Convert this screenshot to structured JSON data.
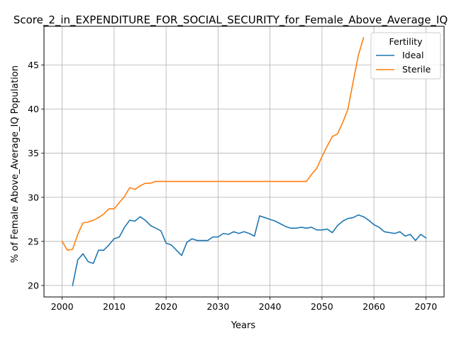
{
  "chart_data": {
    "type": "line",
    "title": "Score_2_in_EXPENDITURE_FOR_SOCIAL_SECURITY_for_Female_Above_Average_IQ",
    "xlabel": "Years",
    "ylabel": "% of Female Above_Average_IQ Population",
    "xlim": [
      1996.5,
      2073.5
    ],
    "ylim": [
      18.7,
      49.4
    ],
    "xticks": [
      2000,
      2010,
      2020,
      2030,
      2040,
      2050,
      2060,
      2070
    ],
    "xtick_labels": [
      "2000",
      "2010",
      "2020",
      "2030",
      "2040",
      "2050",
      "2060",
      "2070"
    ],
    "yticks": [
      20,
      25,
      30,
      35,
      40,
      45
    ],
    "ytick_labels": [
      "20",
      "25",
      "30",
      "35",
      "40",
      "45"
    ],
    "grid": true,
    "legend": {
      "title": "Fertility",
      "placement": "top-right"
    },
    "series": [
      {
        "name": "Ideal",
        "color": "#1f77b4",
        "x": [
          2002,
          2003,
          2004,
          2005,
          2006,
          2007,
          2008,
          2009,
          2010,
          2011,
          2012,
          2013,
          2014,
          2015,
          2016,
          2017,
          2018,
          2019,
          2020,
          2021,
          2022,
          2023,
          2024,
          2025,
          2026,
          2027,
          2028,
          2029,
          2030,
          2031,
          2032,
          2033,
          2034,
          2035,
          2036,
          2037,
          2038,
          2039,
          2040,
          2041,
          2042,
          2043,
          2044,
          2045,
          2046,
          2047,
          2048,
          2049,
          2050,
          2051,
          2052,
          2053,
          2054,
          2055,
          2056,
          2057,
          2058,
          2059,
          2060,
          2061,
          2062,
          2063,
          2064,
          2065,
          2066,
          2067,
          2068,
          2069,
          2070
        ],
        "y": [
          20.0,
          22.9,
          23.6,
          22.7,
          22.5,
          24.0,
          24.0,
          24.6,
          25.3,
          25.5,
          26.6,
          27.4,
          27.3,
          27.8,
          27.4,
          26.8,
          26.5,
          26.2,
          24.8,
          24.6,
          24.0,
          23.4,
          24.9,
          25.3,
          25.1,
          25.1,
          25.1,
          25.5,
          25.5,
          25.9,
          25.8,
          26.1,
          25.9,
          26.1,
          25.9,
          25.6,
          27.9,
          27.7,
          27.5,
          27.3,
          27.0,
          26.7,
          26.5,
          26.5,
          26.6,
          26.5,
          26.6,
          26.3,
          26.3,
          26.4,
          26.0,
          26.8,
          27.3,
          27.6,
          27.7,
          28.0,
          27.8,
          27.4,
          26.9,
          26.6,
          26.1,
          26.0,
          25.9,
          26.1,
          25.6,
          25.8,
          25.1,
          25.8,
          25.4
        ]
      },
      {
        "name": "Sterile",
        "color": "#ff7f0e",
        "x": [
          2000,
          2001,
          2002,
          2003,
          2004,
          2005,
          2006,
          2007,
          2008,
          2009,
          2010,
          2011,
          2012,
          2013,
          2014,
          2015,
          2016,
          2017,
          2018,
          2019,
          2020,
          2021,
          2022,
          2023,
          2024,
          2025,
          2026,
          2027,
          2028,
          2029,
          2030,
          2031,
          2032,
          2033,
          2034,
          2035,
          2036,
          2037,
          2038,
          2039,
          2040,
          2041,
          2042,
          2043,
          2044,
          2045,
          2046,
          2047,
          2048,
          2049,
          2050,
          2051,
          2052,
          2053,
          2054,
          2055,
          2056,
          2057,
          2058
        ],
        "y": [
          25.0,
          24.0,
          24.1,
          25.8,
          27.1,
          27.2,
          27.4,
          27.7,
          28.1,
          28.7,
          28.7,
          29.4,
          30.1,
          31.1,
          30.9,
          31.3,
          31.6,
          31.6,
          31.8,
          31.8,
          31.8,
          31.8,
          31.8,
          31.8,
          31.8,
          31.8,
          31.8,
          31.8,
          31.8,
          31.8,
          31.8,
          31.8,
          31.8,
          31.8,
          31.8,
          31.8,
          31.8,
          31.8,
          31.8,
          31.8,
          31.8,
          31.8,
          31.8,
          31.8,
          31.8,
          31.8,
          31.8,
          31.8,
          32.6,
          33.3,
          34.6,
          35.8,
          36.9,
          37.2,
          38.5,
          40.0,
          43.1,
          46.1,
          48.1
        ]
      }
    ]
  }
}
